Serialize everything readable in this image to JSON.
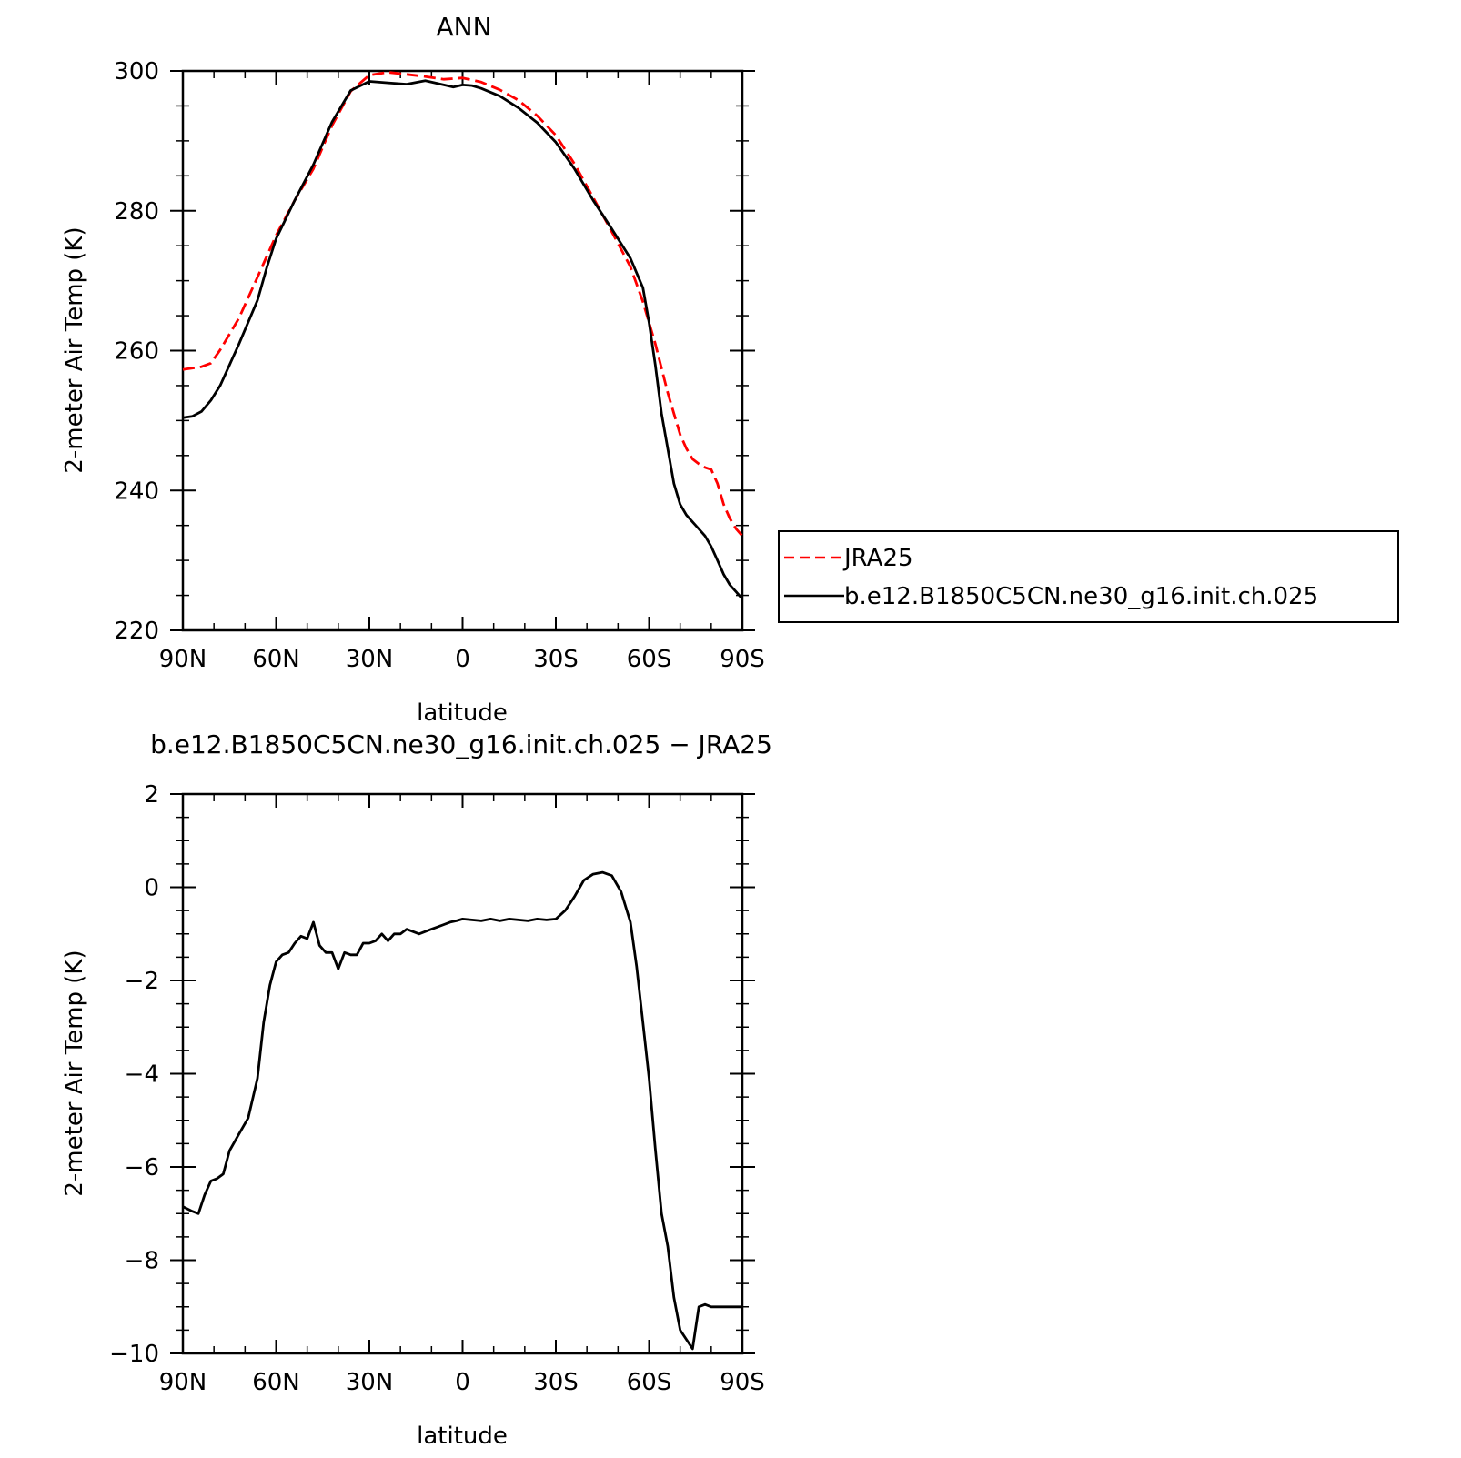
{
  "chart_data": [
    {
      "type": "line",
      "title": "ANN",
      "xlabel": "latitude",
      "ylabel": "2-meter Air Temp (K)",
      "xlim": [
        90,
        -90
      ],
      "ylim": [
        220,
        300
      ],
      "x_ticks": [
        90,
        60,
        30,
        0,
        -30,
        -60,
        -90
      ],
      "x_tick_labels": [
        "90N",
        "60N",
        "30N",
        "0",
        "30S",
        "60S",
        "90S"
      ],
      "y_ticks": [
        220,
        240,
        260,
        280,
        300
      ],
      "y_tick_labels": [
        "220",
        "240",
        "260",
        "280",
        "300"
      ],
      "grid": false,
      "legend_position": "right",
      "series": [
        {
          "name": "JRA25",
          "color": "#ff0000",
          "dash": "dashed",
          "x": [
            90,
            84,
            81,
            78,
            72,
            66,
            60,
            54,
            48,
            42,
            36,
            30,
            24,
            18,
            12,
            6,
            0,
            -6,
            -12,
            -18,
            -24,
            -30,
            -36,
            -42,
            -48,
            -54,
            -58,
            -62,
            -66,
            -68,
            -70,
            -72,
            -74,
            -76,
            -78,
            -80,
            -82,
            -84,
            -86,
            -88,
            -90
          ],
          "y": [
            257.3,
            257.7,
            258.2,
            260.1,
            264.6,
            270.5,
            276.5,
            281.5,
            286.0,
            292.2,
            297.1,
            299.4,
            299.8,
            299.5,
            299.2,
            298.8,
            299.0,
            298.4,
            297.3,
            295.8,
            293.6,
            290.8,
            286.7,
            281.9,
            277.0,
            272.0,
            267.0,
            261.0,
            254.0,
            251.0,
            248.0,
            246.0,
            244.5,
            243.8,
            243.3,
            243.0,
            241.0,
            238.0,
            236.0,
            234.5,
            233.5
          ]
        },
        {
          "name": "b.e12.B1850C5CN.ne30_g16.init.ch.025",
          "color": "#000000",
          "dash": "solid",
          "x": [
            90,
            87,
            84,
            81,
            78,
            72,
            66,
            63,
            60,
            54,
            48,
            42,
            36,
            30,
            24,
            18,
            12,
            6,
            3,
            0,
            -3,
            -6,
            -12,
            -18,
            -24,
            -30,
            -36,
            -42,
            -48,
            -54,
            -58,
            -60,
            -62,
            -64,
            -66,
            -68,
            -70,
            -72,
            -74,
            -76,
            -78,
            -80,
            -82,
            -84,
            -86,
            -88,
            -90
          ],
          "y": [
            250.4,
            250.6,
            251.3,
            252.9,
            255.0,
            260.9,
            267.2,
            271.9,
            276.0,
            281.5,
            286.6,
            292.7,
            297.2,
            298.5,
            298.3,
            298.1,
            298.6,
            298.0,
            297.7,
            298.0,
            297.9,
            297.5,
            296.4,
            294.7,
            292.6,
            289.8,
            286.0,
            281.5,
            277.4,
            273.2,
            269.0,
            264.0,
            258.0,
            251.0,
            246.0,
            241.0,
            238.0,
            236.5,
            235.5,
            234.5,
            233.5,
            232.0,
            230.0,
            228.0,
            226.5,
            225.5,
            224.5
          ]
        }
      ]
    },
    {
      "type": "line",
      "title": "b.e12.B1850C5CN.ne30_g16.init.ch.025 − JRA25",
      "xlabel": "latitude",
      "ylabel": "2-meter Air Temp (K)",
      "xlim": [
        90,
        -90
      ],
      "ylim": [
        -10,
        2
      ],
      "x_ticks": [
        90,
        60,
        30,
        0,
        -30,
        -60,
        -90
      ],
      "x_tick_labels": [
        "90N",
        "60N",
        "30N",
        "0",
        "30S",
        "60S",
        "90S"
      ],
      "y_ticks": [
        -10,
        -8,
        -6,
        -4,
        -2,
        0,
        2
      ],
      "y_tick_labels": [
        "−10",
        "−8",
        "−6",
        "−4",
        "−2",
        "0",
        "2"
      ],
      "grid": false,
      "series": [
        {
          "color": "#000000",
          "dash": "solid",
          "x": [
            90,
            87,
            85,
            83,
            81,
            79,
            77,
            75,
            72,
            69,
            66,
            64,
            62,
            60,
            58,
            56,
            54,
            52,
            50,
            48,
            46,
            44,
            42,
            40,
            38,
            36,
            34,
            32,
            30,
            28,
            26,
            24,
            22,
            20,
            18,
            16,
            14,
            12,
            10,
            8,
            6,
            4,
            2,
            0,
            -3,
            -6,
            -9,
            -12,
            -15,
            -18,
            -21,
            -24,
            -27,
            -30,
            -33,
            -36,
            -39,
            -42,
            -45,
            -48,
            -51,
            -54,
            -56,
            -58,
            -60,
            -62,
            -64,
            -66,
            -68,
            -70,
            -72,
            -74,
            -76,
            -78,
            -80,
            -82,
            -84,
            -86,
            -88,
            -90
          ],
          "y": [
            -6.85,
            -6.95,
            -7.0,
            -6.6,
            -6.3,
            -6.25,
            -6.15,
            -5.65,
            -5.3,
            -4.95,
            -4.1,
            -2.9,
            -2.1,
            -1.6,
            -1.45,
            -1.4,
            -1.2,
            -1.05,
            -1.1,
            -0.75,
            -1.25,
            -1.4,
            -1.4,
            -1.75,
            -1.4,
            -1.45,
            -1.45,
            -1.2,
            -1.2,
            -1.15,
            -1.0,
            -1.15,
            -1.0,
            -1.0,
            -0.9,
            -0.95,
            -1.0,
            -0.95,
            -0.9,
            -0.85,
            -0.8,
            -0.75,
            -0.72,
            -0.68,
            -0.7,
            -0.72,
            -0.68,
            -0.72,
            -0.68,
            -0.7,
            -0.72,
            -0.68,
            -0.7,
            -0.68,
            -0.5,
            -0.2,
            0.15,
            0.28,
            0.32,
            0.25,
            -0.1,
            -0.75,
            -1.7,
            -2.9,
            -4.1,
            -5.6,
            -7.0,
            -7.7,
            -8.8,
            -9.5,
            -9.7,
            -9.9,
            -9.0,
            -8.95,
            -9.0,
            -9.0,
            -9.0,
            -9.0,
            -9.0,
            -9.0
          ]
        }
      ]
    }
  ]
}
